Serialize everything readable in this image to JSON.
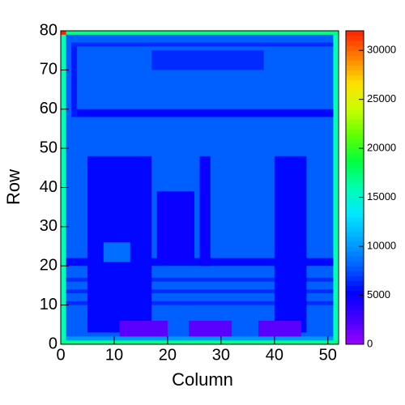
{
  "chart_data": {
    "type": "heatmap",
    "x_label": "Column",
    "y_label": "Row",
    "xlim": [
      0,
      52
    ],
    "ylim": [
      0,
      80
    ],
    "xticks": [
      0,
      10,
      20,
      30,
      40,
      50
    ],
    "yticks": [
      0,
      10,
      20,
      30,
      40,
      50,
      60,
      70,
      80
    ],
    "zlim": [
      0,
      32000
    ],
    "zticks": [
      0,
      5000,
      10000,
      15000,
      20000,
      25000,
      30000
    ],
    "palette": [
      "#9a00ff",
      "#4400ff",
      "#0000ff",
      "#0060ff",
      "#00a8ff",
      "#00e8ff",
      "#00ffb0",
      "#00ff40",
      "#60ff00",
      "#c8ff00",
      "#ffe000",
      "#ff8000",
      "#ff2000"
    ],
    "cells": [
      {
        "x": [
          0,
          52
        ],
        "y": [
          0,
          80
        ],
        "value": 8000
      },
      {
        "x": [
          0,
          1
        ],
        "y": [
          0,
          80
        ],
        "value": 16000
      },
      {
        "x": [
          51,
          52
        ],
        "y": [
          0,
          80
        ],
        "value": 16000
      },
      {
        "x": [
          0,
          52
        ],
        "y": [
          0,
          1
        ],
        "value": 17000
      },
      {
        "x": [
          0,
          52
        ],
        "y": [
          79,
          80
        ],
        "value": 17000
      },
      {
        "x": [
          0,
          1
        ],
        "y": [
          79,
          80
        ],
        "value": 32000
      },
      {
        "x": [
          1,
          51
        ],
        "y": [
          1,
          2
        ],
        "value": 10000
      },
      {
        "x": [
          3,
          51
        ],
        "y": [
          58,
          60
        ],
        "value": 5500
      },
      {
        "x": [
          2,
          3
        ],
        "y": [
          58,
          76
        ],
        "value": 6000
      },
      {
        "x": [
          2,
          51
        ],
        "y": [
          76,
          77
        ],
        "value": 6500
      },
      {
        "x": [
          17,
          38
        ],
        "y": [
          70,
          75
        ],
        "value": 6500
      },
      {
        "x": [
          1,
          51
        ],
        "y": [
          20,
          22
        ],
        "value": 5500
      },
      {
        "x": [
          1,
          51
        ],
        "y": [
          16,
          17
        ],
        "value": 6500
      },
      {
        "x": [
          1,
          51
        ],
        "y": [
          13,
          14
        ],
        "value": 6500
      },
      {
        "x": [
          1,
          51
        ],
        "y": [
          10,
          11
        ],
        "value": 6500
      },
      {
        "x": [
          5,
          17
        ],
        "y": [
          3,
          48
        ],
        "value": 5500
      },
      {
        "x": [
          8,
          13
        ],
        "y": [
          21,
          26
        ],
        "value": 8500
      },
      {
        "x": [
          18,
          25
        ],
        "y": [
          21,
          39
        ],
        "value": 5000
      },
      {
        "x": [
          26,
          28
        ],
        "y": [
          20,
          48
        ],
        "value": 5000
      },
      {
        "x": [
          40,
          46
        ],
        "y": [
          3,
          48
        ],
        "value": 5500
      },
      {
        "x": [
          11,
          20
        ],
        "y": [
          2,
          6
        ],
        "value": 2000
      },
      {
        "x": [
          24,
          32
        ],
        "y": [
          2,
          6
        ],
        "value": 2000
      },
      {
        "x": [
          37,
          45
        ],
        "y": [
          2,
          6
        ],
        "value": 2000
      }
    ]
  }
}
